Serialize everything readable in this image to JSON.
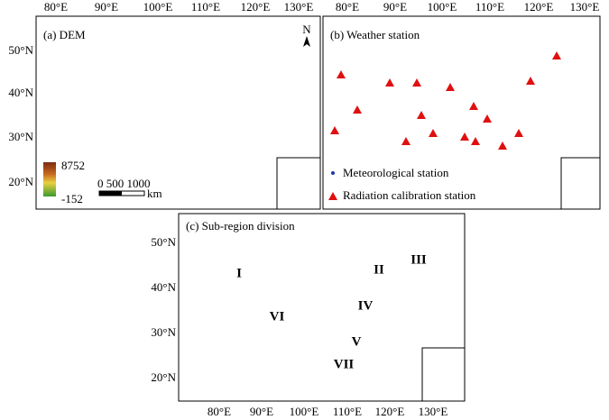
{
  "lon_labels": [
    "80°E",
    "90°E",
    "100°E",
    "110°E",
    "120°E",
    "130°E"
  ],
  "lat_labels": [
    "50°N",
    "40°N",
    "30°N",
    "20°N"
  ],
  "panel_a": {
    "title": "(a) DEM",
    "north": "N",
    "legend_max": "8752",
    "legend_min": "-152",
    "scale_labels": "0 500 1000",
    "scale_unit": "km"
  },
  "panel_b": {
    "title": "(b) Weather station",
    "legend": [
      "Meteorological station",
      "Radiation calibration station"
    ]
  },
  "panel_c": {
    "title": "(c) Sub-region division",
    "regions": [
      "I",
      "II",
      "III",
      "IV",
      "V",
      "VI",
      "VII"
    ]
  }
}
